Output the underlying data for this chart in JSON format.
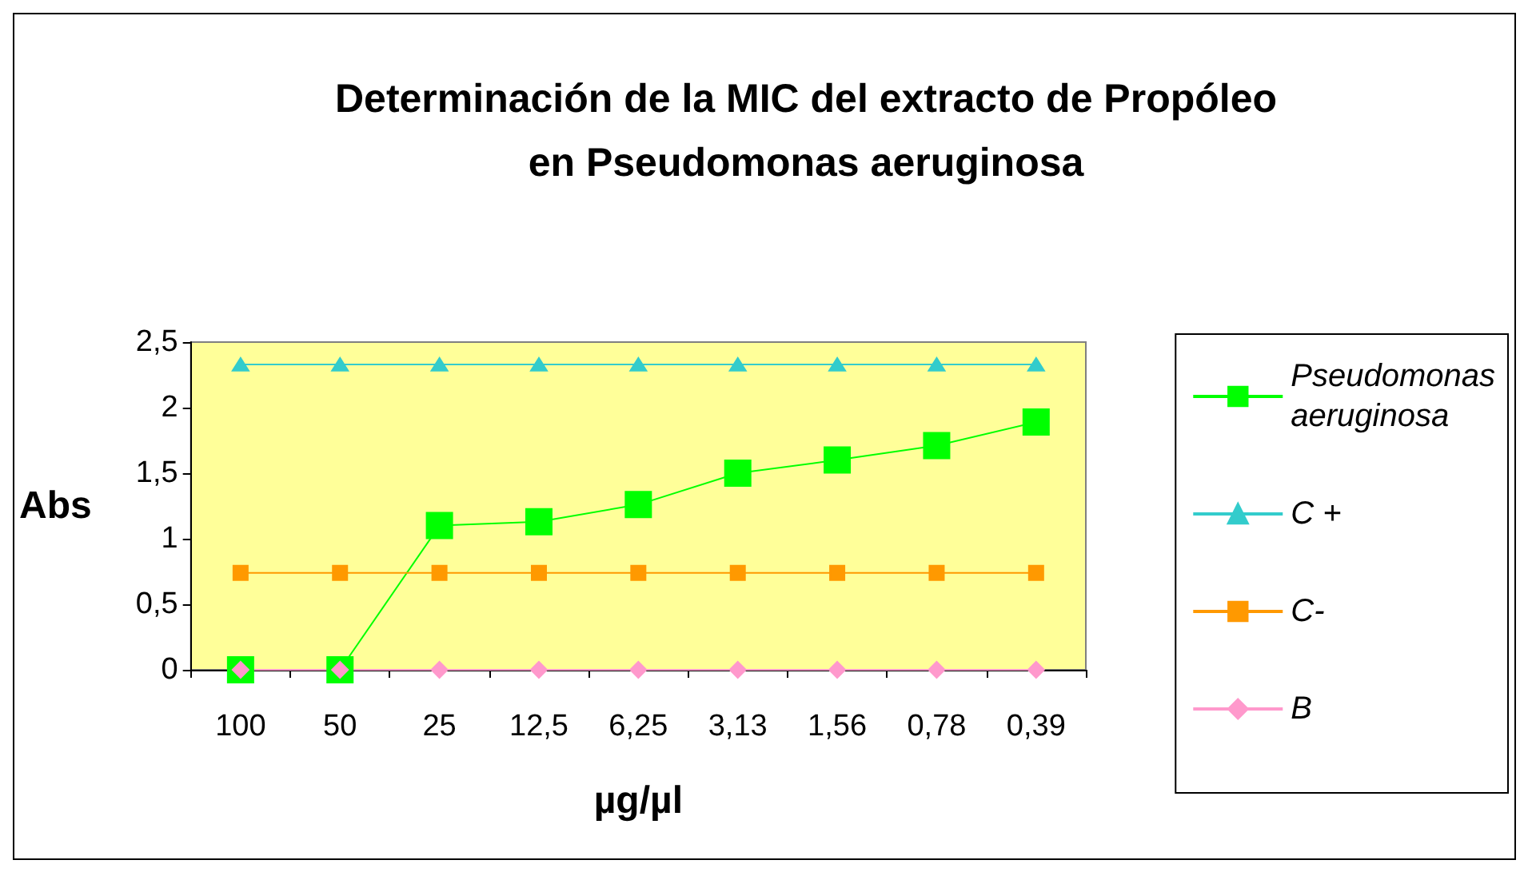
{
  "chart_data": {
    "type": "line",
    "title": "Determinación de la MIC del extracto de Propóleo\nen Pseudomonas aeruginosa",
    "xlabel": "µg/µl",
    "ylabel": "Abs",
    "categories": [
      "100",
      "50",
      "25",
      "12,5",
      "6,25",
      "3,13",
      "1,56",
      "0,78",
      "0,39"
    ],
    "series": [
      {
        "name": "Pseudomonas aeruginosa",
        "color": "#00ff00",
        "marker": "square",
        "values": [
          0,
          0,
          1.1,
          1.13,
          1.26,
          1.5,
          1.6,
          1.71,
          1.89
        ]
      },
      {
        "name": "C +",
        "color": "#33cccc",
        "marker": "triangle",
        "values": [
          2.33,
          2.33,
          2.33,
          2.33,
          2.33,
          2.33,
          2.33,
          2.33,
          2.33
        ]
      },
      {
        "name": "C-",
        "color": "#ff9900",
        "marker": "square",
        "values": [
          0.74,
          0.74,
          0.74,
          0.74,
          0.74,
          0.74,
          0.74,
          0.74,
          0.74
        ]
      },
      {
        "name": "B",
        "color": "#ff99cc",
        "marker": "diamond",
        "values": [
          0,
          0,
          0,
          0,
          0,
          0,
          0,
          0,
          0
        ]
      }
    ],
    "ylim": [
      0,
      2.5
    ],
    "yticks": [
      0,
      {
        "value": 0.5,
        "label": "0,5"
      },
      1,
      {
        "value": 1.5,
        "label": "1,5"
      },
      2,
      {
        "value": 2.5,
        "label": "2,5"
      }
    ],
    "grid": false,
    "legend": "right",
    "line_style": "solid"
  }
}
